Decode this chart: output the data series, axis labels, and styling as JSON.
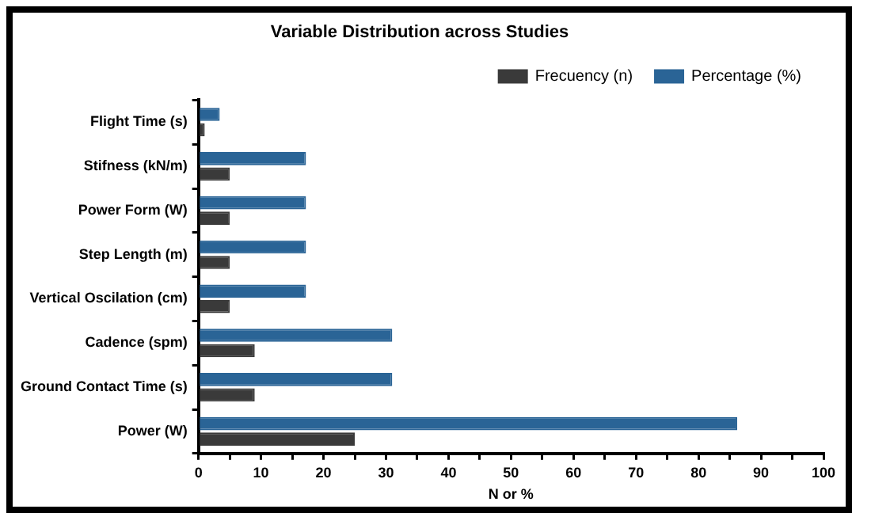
{
  "chart_data": {
    "type": "bar",
    "orientation": "horizontal",
    "title": "Variable Distribution across Studies",
    "xlabel": "N or %",
    "categories": [
      "Flight Time (s)",
      "Stifness (kN/m)",
      "Power Form (W)",
      "Step Length (m)",
      "Vertical Oscilation (cm)",
      "Cadence (spm)",
      "Ground Contact Time (s)",
      "Power (W)"
    ],
    "series": [
      {
        "name": "Frecuency (n)",
        "color": "#3a3a3a",
        "values": [
          1,
          5,
          5,
          5,
          5,
          9,
          9,
          25
        ]
      },
      {
        "name": "Percentage (%)",
        "color": "#2a6496",
        "values": [
          3.4,
          17.2,
          17.2,
          17.2,
          17.2,
          31,
          31,
          86.2
        ]
      }
    ],
    "xlim": [
      0,
      100
    ],
    "xticks": [
      0,
      {
        "value": 5,
        "label": null
      },
      10,
      {
        "value": 15,
        "label": null
      },
      20,
      {
        "value": 25,
        "label": null
      },
      30,
      {
        "value": 35,
        "label": null
      },
      40,
      {
        "value": 45,
        "label": null
      },
      50,
      {
        "value": 55,
        "label": null
      },
      60,
      {
        "value": 65,
        "label": null
      },
      70,
      {
        "value": 75,
        "label": null
      },
      80,
      {
        "value": 85,
        "label": null
      },
      90,
      {
        "value": 95,
        "label": null
      },
      100
    ],
    "grid": false,
    "legend": "top right"
  }
}
